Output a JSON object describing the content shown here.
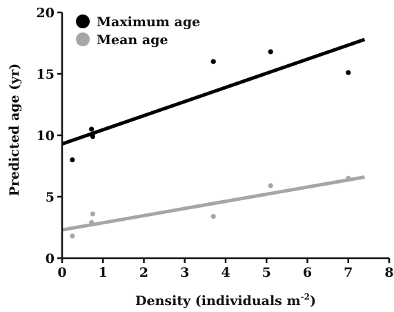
{
  "chart_data": {
    "type": "scatter",
    "xlabel_main": "Density (individuals m",
    "xlabel_sup": "-2",
    "xlabel_close": ")",
    "ylabel": "Predicted age (yr)",
    "xlim": [
      0,
      8
    ],
    "ylim": [
      0,
      20
    ],
    "x_ticks": [
      "0",
      "1",
      "2",
      "3",
      "4",
      "5",
      "6",
      "7",
      "8"
    ],
    "y_ticks": [
      "0",
      "5",
      "10",
      "15",
      "20"
    ],
    "grid": false,
    "legend_position": "top-left",
    "series": [
      {
        "name": "Maximum age",
        "color": "#000000",
        "points": [
          [
            0.25,
            8.0
          ],
          [
            0.72,
            10.5
          ],
          [
            0.75,
            9.9
          ],
          [
            3.7,
            16.0
          ],
          [
            5.1,
            16.8
          ],
          [
            7.0,
            15.1
          ]
        ],
        "trend": {
          "x": [
            0,
            7.4
          ],
          "y": [
            9.3,
            17.8
          ]
        }
      },
      {
        "name": "Mean age",
        "color": "#a6a6a6",
        "points": [
          [
            0.25,
            1.8
          ],
          [
            0.72,
            2.9
          ],
          [
            0.75,
            3.6
          ],
          [
            3.7,
            3.4
          ],
          [
            5.1,
            5.9
          ],
          [
            7.0,
            6.5
          ]
        ],
        "trend": {
          "x": [
            0,
            7.4
          ],
          "y": [
            2.3,
            6.6
          ]
        }
      }
    ]
  }
}
